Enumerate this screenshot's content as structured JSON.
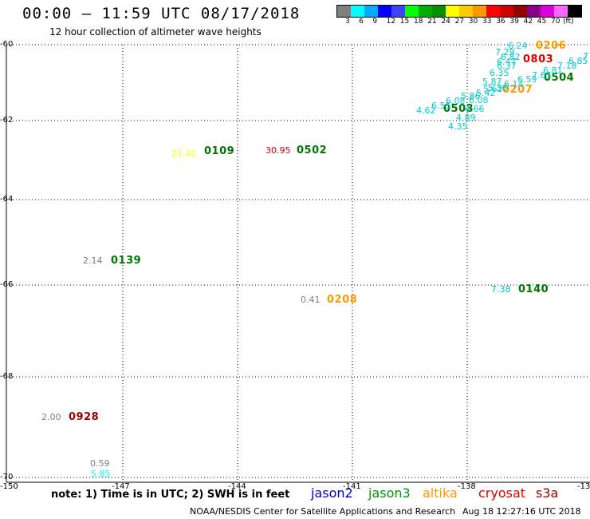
{
  "header": {
    "title": "00:00 – 11:59 UTC 08/17/2018",
    "subtitle": "12 hour collection of altimeter wave heights"
  },
  "colorbar": {
    "colors": [
      "#7f7f7f",
      "#00ffff",
      "#00aaff",
      "#0000ff",
      "#4040ff",
      "#00ff00",
      "#00b000",
      "#009000",
      "#ffff00",
      "#ffcc00",
      "#ff9900",
      "#ff0000",
      "#cc0000",
      "#990000",
      "#8b008b",
      "#dd00dd",
      "#ff66ff",
      "#000000"
    ],
    "labels": [
      "3",
      "6",
      "9",
      "12",
      "15",
      "18",
      "21",
      "24",
      "27",
      "30",
      "33",
      "36",
      "39",
      "42",
      "45",
      "70"
    ],
    "unit": "(ft)"
  },
  "axes": {
    "lat_labels": [
      "-60",
      "-62",
      "-64",
      "-66",
      "-68",
      "-70"
    ],
    "lon_labels": [
      "-150",
      "-147",
      "-144",
      "-141",
      "-138",
      "-13"
    ]
  },
  "observations": [
    {
      "t": "0206",
      "c": "#ff9900"
    },
    {
      "t": "0803",
      "c": "#dd0000"
    },
    {
      "t": "0504",
      "c": "#007700"
    },
    {
      "t": "0207",
      "c": "#ff9900"
    },
    {
      "t": "0503",
      "c": "#007700"
    },
    {
      "t": "0109",
      "c": "#007700"
    },
    {
      "t": "0502",
      "c": "#007700"
    },
    {
      "t": "0139",
      "c": "#007700"
    },
    {
      "t": "0208",
      "c": "#ff9900"
    },
    {
      "t": "0140",
      "c": "#007700"
    },
    {
      "t": "0928",
      "c": "#990000"
    }
  ],
  "values": [
    {
      "v": "6.24",
      "c": "#00cccc"
    },
    {
      "v": "7.29",
      "c": "#00cccc"
    },
    {
      "v": "6.82",
      "c": "#00cccc"
    },
    {
      "v": "6.47",
      "c": "#00cccc"
    },
    {
      "v": "6.37",
      "c": "#00cccc"
    },
    {
      "v": "7.18",
      "c": "#00cccc"
    },
    {
      "v": "6.85",
      "c": "#00cccc"
    },
    {
      "v": "7",
      "c": "#00cccc"
    },
    {
      "v": "6.35",
      "c": "#00cccc"
    },
    {
      "v": "7.65",
      "c": "#00cccc"
    },
    {
      "v": "6.81",
      "c": "#00cccc"
    },
    {
      "v": "5.87",
      "c": "#00cccc"
    },
    {
      "v": "6.14",
      "c": "#00cccc"
    },
    {
      "v": "6.59",
      "c": "#00cccc"
    },
    {
      "v": "5.36",
      "c": "#00cccc"
    },
    {
      "v": "5.42",
      "c": "#00cccc"
    },
    {
      "v": "5.62",
      "c": "#00cccc"
    },
    {
      "v": "5.86",
      "c": "#00cccc"
    },
    {
      "v": "6.08",
      "c": "#00cccc"
    },
    {
      "v": "6.55",
      "c": "#00cccc"
    },
    {
      "v": "6.08",
      "c": "#00cccc"
    },
    {
      "v": "4.66",
      "c": "#00cccc"
    },
    {
      "v": "4.62",
      "c": "#00cccc"
    },
    {
      "v": "4.89",
      "c": "#00cccc"
    },
    {
      "v": "4.35",
      "c": "#00cccc"
    },
    {
      "v": "21.41",
      "c": "#ffff00"
    },
    {
      "v": "30.95",
      "c": "#dd0000"
    },
    {
      "v": "2.14",
      "c": "#7f7f7f"
    },
    {
      "v": "0.41",
      "c": "#7f7f7f"
    },
    {
      "v": "7.38",
      "c": "#00cccc"
    },
    {
      "v": "2.00",
      "c": "#7f7f7f"
    },
    {
      "v": "0.59",
      "c": "#7f7f7f"
    },
    {
      "v": "5.85",
      "c": "#00ffff"
    }
  ],
  "legend": {
    "note": "note: 1) Time is in UTC; 2) SWH is in feet",
    "satellites": [
      {
        "name": "jason2",
        "c": "#0000cc"
      },
      {
        "name": "jason3",
        "c": "#009900"
      },
      {
        "name": "altika",
        "c": "#ff9900"
      },
      {
        "name": "cryosat",
        "c": "#dd0000"
      },
      {
        "name": "s3a",
        "c": "#990000"
      }
    ]
  },
  "footer": {
    "credit": "NOAA/NESDIS Center for Satellite Applications and Research",
    "timestamp": "Aug 18 12:27:16 UTC 2018"
  }
}
